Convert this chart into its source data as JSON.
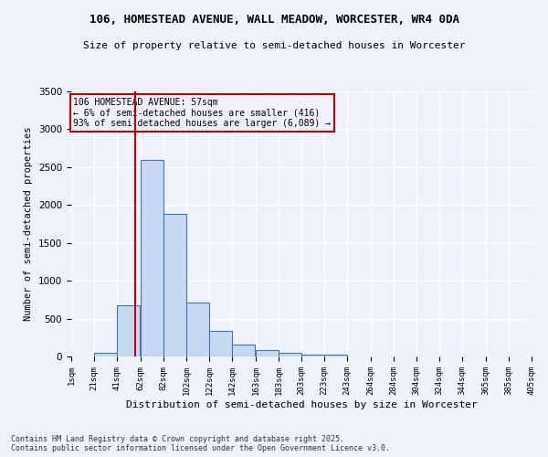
{
  "title_line1": "106, HOMESTEAD AVENUE, WALL MEADOW, WORCESTER, WR4 0DA",
  "title_line2": "Size of property relative to semi-detached houses in Worcester",
  "xlabel": "Distribution of semi-detached houses by size in Worcester",
  "ylabel": "Number of semi-detached properties",
  "bin_labels": [
    "1sqm",
    "21sqm",
    "41sqm",
    "62sqm",
    "82sqm",
    "102sqm",
    "122sqm",
    "142sqm",
    "163sqm",
    "183sqm",
    "203sqm",
    "223sqm",
    "243sqm",
    "264sqm",
    "284sqm",
    "304sqm",
    "324sqm",
    "344sqm",
    "365sqm",
    "385sqm",
    "405sqm"
  ],
  "bar_heights": [
    0,
    50,
    670,
    2600,
    1880,
    710,
    340,
    155,
    90,
    50,
    30,
    20,
    0,
    0,
    0,
    0,
    0,
    0,
    0,
    0
  ],
  "bar_color": "#c5d9f1",
  "bar_edge_color": "#4472c4",
  "annotation_line1": "106 HOMESTEAD AVENUE: 57sqm",
  "annotation_line2": "← 6% of semi-detached houses are smaller (416)",
  "annotation_line3": "93% of semi-detached houses are larger (6,089) →",
  "vline_color": "#cc0000",
  "vline_x": 57,
  "annotation_box_edge_color": "#cc0000",
  "background_color": "#eef2fb",
  "grid_color": "#ffffff",
  "ylim": [
    0,
    3500
  ],
  "footnote1": "Contains HM Land Registry data © Crown copyright and database right 2025.",
  "footnote2": "Contains public sector information licensed under the Open Government Licence v3.0."
}
